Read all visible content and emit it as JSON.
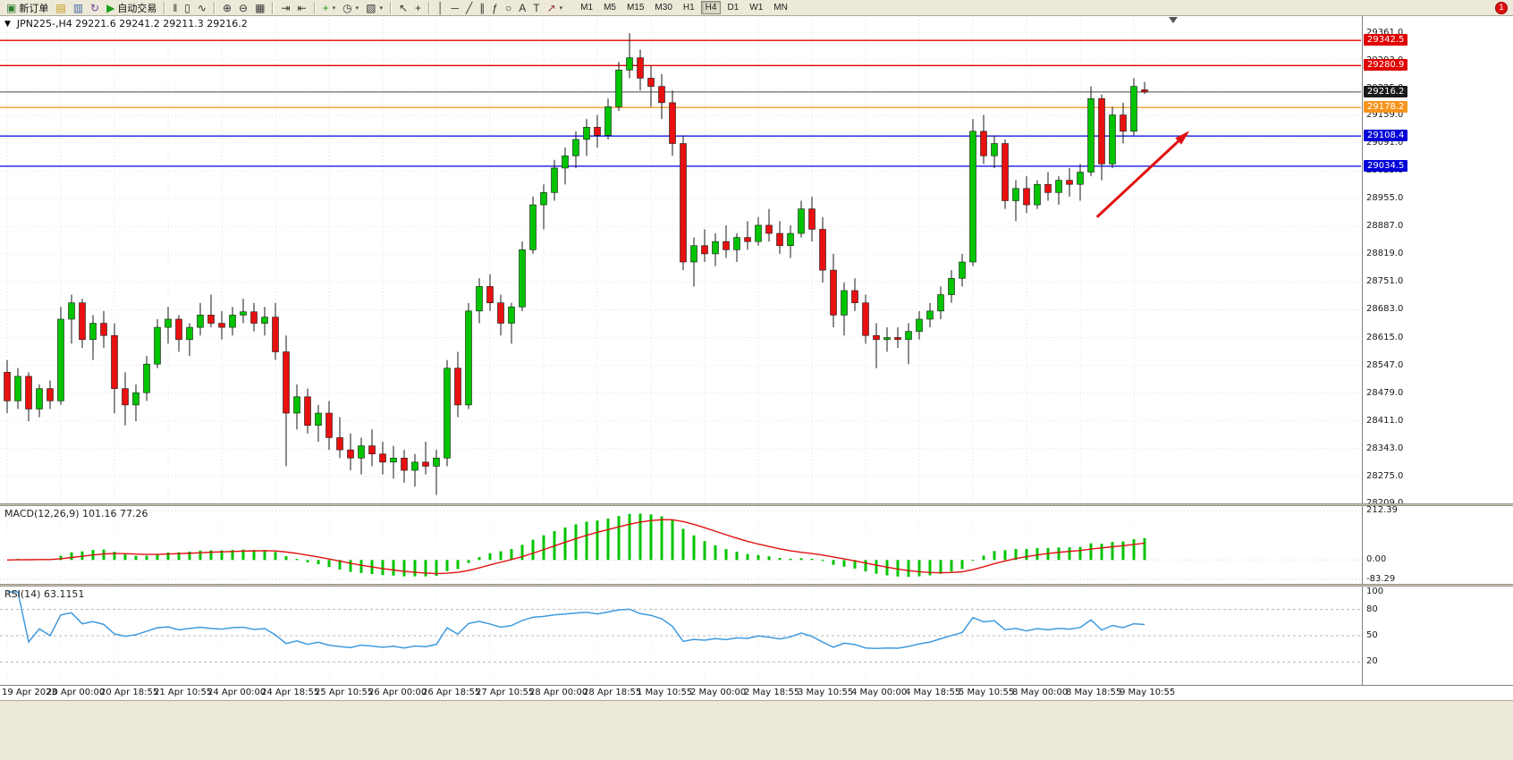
{
  "toolbar": {
    "buttons": [
      {
        "name": "new-order",
        "icon": "new-order-icon",
        "glyph": "▣",
        "label": "新订单",
        "color": "#2f7d2f"
      },
      {
        "name": "market-watch",
        "icon": "market-watch-icon",
        "glyph": "▤",
        "color": "#c89612"
      },
      {
        "name": "data-window",
        "icon": "data-window-icon",
        "glyph": "▥",
        "color": "#4668a8"
      },
      {
        "name": "refresh",
        "icon": "refresh-icon",
        "glyph": "↻",
        "color": "#7a3fa0"
      },
      {
        "name": "auto-trading",
        "icon": "auto-trading-icon",
        "glyph": "▶",
        "label": "自动交易",
        "color": "#18a018"
      },
      {
        "sep": true
      },
      {
        "name": "bar-chart",
        "icon": "bar-chart-icon",
        "glyph": "‖",
        "color": "#333333"
      },
      {
        "name": "candlestick-chart",
        "icon": "candlestick-chart-icon",
        "glyph": "▯",
        "color": "#333333"
      },
      {
        "name": "line-chart",
        "icon": "line-chart-icon",
        "glyph": "∿",
        "color": "#333333"
      },
      {
        "sep": true
      },
      {
        "name": "zoom-in",
        "icon": "zoom-in-icon",
        "glyph": "⊕",
        "color": "#333333"
      },
      {
        "name": "zoom-out",
        "icon": "zoom-out-icon",
        "glyph": "⊖",
        "color": "#333333"
      },
      {
        "name": "tile-windows",
        "icon": "tile-windows-icon",
        "glyph": "▦",
        "color": "#333333"
      },
      {
        "sep": true
      },
      {
        "name": "auto-scroll",
        "icon": "auto-scroll-icon",
        "glyph": "⇥",
        "color": "#333333"
      },
      {
        "name": "chart-shift",
        "icon": "chart-shift-icon",
        "glyph": "⇤",
        "color": "#333333"
      },
      {
        "sep": true
      },
      {
        "name": "indicators",
        "icon": "indicators-icon",
        "glyph": "+",
        "color": "#18a018",
        "caret": true
      },
      {
        "name": "periods",
        "icon": "periods-icon",
        "glyph": "◷",
        "color": "#333333",
        "caret": true
      },
      {
        "name": "templates",
        "icon": "templates-icon",
        "glyph": "▧",
        "color": "#333333",
        "caret": true
      },
      {
        "sep": true
      },
      {
        "name": "cursor",
        "icon": "cursor-icon",
        "glyph": "↖",
        "color": "#333333"
      },
      {
        "name": "crosshair",
        "icon": "crosshair-icon",
        "glyph": "+",
        "color": "#333333"
      },
      {
        "sep": true
      },
      {
        "name": "vertical-line",
        "icon": "vertical-line-icon",
        "glyph": "│",
        "color": "#333333"
      },
      {
        "name": "horizontal-line",
        "icon": "horizontal-line-icon",
        "glyph": "─",
        "color": "#333333"
      },
      {
        "name": "trendline",
        "icon": "trendline-icon",
        "glyph": "╱",
        "color": "#333333"
      },
      {
        "name": "equidistant-channel",
        "icon": "channel-icon",
        "glyph": "∥",
        "color": "#333333"
      },
      {
        "name": "fibonacci",
        "icon": "fibonacci-icon",
        "glyph": "ƒ",
        "color": "#333333"
      },
      {
        "name": "shapes",
        "icon": "shapes-icon",
        "glyph": "○",
        "color": "#333333"
      },
      {
        "name": "text",
        "icon": "text-icon",
        "glyph": "A",
        "color": "#333333"
      },
      {
        "name": "text-label",
        "icon": "text-label-icon",
        "glyph": "T",
        "color": "#333333"
      },
      {
        "name": "arrows",
        "icon": "arrows-icon",
        "glyph": "↗",
        "color": "#a03030",
        "caret": true
      }
    ],
    "timeframes": [
      "M1",
      "M5",
      "M15",
      "M30",
      "H1",
      "H4",
      "D1",
      "W1",
      "MN"
    ],
    "active_timeframe": "H4",
    "notification_count": "1"
  },
  "chart": {
    "symbol_caret": "▼",
    "title": "JPN225-,H4 29221.6 29241.2 29211.3 29216.2"
  },
  "chart_data": {
    "type": "candlestick",
    "symbol": "JPN225-",
    "timeframe": "H4",
    "ohlc_display": {
      "open": "29221.6",
      "high": "29241.2",
      "low": "29211.3",
      "close": "29216.2"
    },
    "up_color": "#00C400",
    "down_color": "#E81010",
    "wick_color": "#1a1a1a",
    "y_range": [
      28209,
      29402
    ],
    "y_ticks": [
      29361.0,
      29293.0,
      29225.0,
      29159.0,
      29091.0,
      29023.0,
      28955.0,
      28887.0,
      28819.0,
      28751.0,
      28683.0,
      28615.0,
      28547.0,
      28479.0,
      28411.0,
      28343.0,
      28275.0,
      28209.0
    ],
    "x_labels": [
      "19 Apr 2023",
      "20 Apr 00:00",
      "20 Apr 18:55",
      "21 Apr 10:55",
      "24 Apr 00:00",
      "24 Apr 18:55",
      "25 Apr 10:55",
      "26 Apr 00:00",
      "26 Apr 18:55",
      "27 Apr 10:55",
      "28 Apr 00:00",
      "28 Apr 18:55",
      "1 May 10:55",
      "2 May 00:00",
      "2 May 18:55",
      "3 May 10:55",
      "4 May 00:00",
      "4 May 18:55",
      "5 May 10:55",
      "8 May 00:00",
      "8 May 18:55",
      "9 May 10:55"
    ],
    "candles": [
      [
        28530,
        28560,
        28430,
        28460
      ],
      [
        28460,
        28540,
        28440,
        28520
      ],
      [
        28520,
        28530,
        28410,
        28440
      ],
      [
        28440,
        28500,
        28420,
        28490
      ],
      [
        28490,
        28510,
        28440,
        28460
      ],
      [
        28460,
        28690,
        28450,
        28660
      ],
      [
        28660,
        28720,
        28600,
        28700
      ],
      [
        28700,
        28710,
        28590,
        28610
      ],
      [
        28610,
        28670,
        28560,
        28650
      ],
      [
        28650,
        28680,
        28590,
        28620
      ],
      [
        28620,
        28650,
        28430,
        28490
      ],
      [
        28490,
        28530,
        28400,
        28450
      ],
      [
        28450,
        28500,
        28410,
        28480
      ],
      [
        28480,
        28570,
        28460,
        28550
      ],
      [
        28550,
        28660,
        28540,
        28640
      ],
      [
        28640,
        28690,
        28600,
        28660
      ],
      [
        28660,
        28670,
        28580,
        28610
      ],
      [
        28610,
        28650,
        28570,
        28640
      ],
      [
        28640,
        28700,
        28620,
        28670
      ],
      [
        28670,
        28720,
        28640,
        28650
      ],
      [
        28650,
        28680,
        28610,
        28640
      ],
      [
        28640,
        28690,
        28620,
        28670
      ],
      [
        28670,
        28710,
        28650,
        28678
      ],
      [
        28678,
        28700,
        28630,
        28650
      ],
      [
        28650,
        28690,
        28620,
        28665
      ],
      [
        28665,
        28700,
        28560,
        28580
      ],
      [
        28580,
        28620,
        28300,
        28430
      ],
      [
        28430,
        28500,
        28390,
        28470
      ],
      [
        28470,
        28490,
        28380,
        28400
      ],
      [
        28400,
        28450,
        28360,
        28430
      ],
      [
        28430,
        28460,
        28340,
        28370
      ],
      [
        28370,
        28420,
        28320,
        28340
      ],
      [
        28340,
        28380,
        28290,
        28320
      ],
      [
        28320,
        28370,
        28280,
        28350
      ],
      [
        28350,
        28390,
        28300,
        28330
      ],
      [
        28330,
        28360,
        28280,
        28310
      ],
      [
        28310,
        28350,
        28270,
        28320
      ],
      [
        28320,
        28340,
        28260,
        28290
      ],
      [
        28290,
        28330,
        28250,
        28310
      ],
      [
        28310,
        28360,
        28280,
        28300
      ],
      [
        28300,
        28340,
        28230,
        28320
      ],
      [
        28320,
        28560,
        28300,
        28540
      ],
      [
        28540,
        28580,
        28420,
        28450
      ],
      [
        28450,
        28700,
        28440,
        28680
      ],
      [
        28680,
        28760,
        28650,
        28740
      ],
      [
        28740,
        28770,
        28680,
        28700
      ],
      [
        28700,
        28720,
        28620,
        28650
      ],
      [
        28650,
        28700,
        28600,
        28690
      ],
      [
        28690,
        28850,
        28680,
        28830
      ],
      [
        28830,
        28960,
        28820,
        28940
      ],
      [
        28940,
        28990,
        28880,
        28970
      ],
      [
        28970,
        29050,
        28950,
        29030
      ],
      [
        29030,
        29080,
        28990,
        29060
      ],
      [
        29060,
        29120,
        29030,
        29100
      ],
      [
        29100,
        29150,
        29060,
        29130
      ],
      [
        29130,
        29160,
        29080,
        29110
      ],
      [
        29110,
        29200,
        29100,
        29180
      ],
      [
        29180,
        29290,
        29170,
        29270
      ],
      [
        29270,
        29360,
        29250,
        29300
      ],
      [
        29300,
        29320,
        29220,
        29250
      ],
      [
        29250,
        29280,
        29180,
        29230
      ],
      [
        29230,
        29260,
        29150,
        29190
      ],
      [
        29190,
        29220,
        29060,
        29090
      ],
      [
        29090,
        29110,
        28780,
        28800
      ],
      [
        28800,
        28860,
        28740,
        28840
      ],
      [
        28840,
        28880,
        28800,
        28820
      ],
      [
        28820,
        28870,
        28790,
        28850
      ],
      [
        28850,
        28890,
        28810,
        28830
      ],
      [
        28830,
        28870,
        28800,
        28860
      ],
      [
        28860,
        28900,
        28830,
        28850
      ],
      [
        28850,
        28910,
        28840,
        28890
      ],
      [
        28890,
        28930,
        28850,
        28870
      ],
      [
        28870,
        28900,
        28820,
        28840
      ],
      [
        28840,
        28890,
        28810,
        28870
      ],
      [
        28870,
        28950,
        28860,
        28930
      ],
      [
        28930,
        28960,
        28850,
        28880
      ],
      [
        28880,
        28910,
        28750,
        28780
      ],
      [
        28780,
        28820,
        28640,
        28670
      ],
      [
        28670,
        28750,
        28620,
        28730
      ],
      [
        28730,
        28760,
        28680,
        28700
      ],
      [
        28700,
        28720,
        28600,
        28620
      ],
      [
        28620,
        28650,
        28540,
        28610
      ],
      [
        28610,
        28640,
        28580,
        28615
      ],
      [
        28615,
        28640,
        28590,
        28610
      ],
      [
        28610,
        28650,
        28550,
        28630
      ],
      [
        28630,
        28680,
        28610,
        28660
      ],
      [
        28660,
        28700,
        28640,
        28680
      ],
      [
        28680,
        28740,
        28660,
        28720
      ],
      [
        28720,
        28780,
        28700,
        28760
      ],
      [
        28760,
        28820,
        28740,
        28800
      ],
      [
        28800,
        29150,
        28790,
        29120
      ],
      [
        29120,
        29160,
        29040,
        29060
      ],
      [
        29060,
        29110,
        29030,
        29090
      ],
      [
        29090,
        29100,
        28930,
        28950
      ],
      [
        28950,
        29000,
        28900,
        28980
      ],
      [
        28980,
        29010,
        28920,
        28940
      ],
      [
        28940,
        29000,
        28930,
        28990
      ],
      [
        28990,
        29020,
        28950,
        28970
      ],
      [
        28970,
        29010,
        28940,
        29000
      ],
      [
        29000,
        29030,
        28960,
        28990
      ],
      [
        28990,
        29040,
        28950,
        29020
      ],
      [
        29020,
        29230,
        29010,
        29200
      ],
      [
        29200,
        29210,
        29000,
        29040
      ],
      [
        29040,
        29180,
        29030,
        29160
      ],
      [
        29160,
        29190,
        29090,
        29120
      ],
      [
        29120,
        29250,
        29110,
        29230
      ],
      [
        29221.6,
        29241.2,
        29211.3,
        29216.2
      ]
    ],
    "price_lines": [
      {
        "price": 29342.5,
        "label": "29342.5",
        "color": "#E00000"
      },
      {
        "price": 29280.9,
        "label": "29280.9",
        "color": "#E00000"
      },
      {
        "price": 29178.2,
        "label": "29178.2",
        "color": "#F7941D"
      },
      {
        "price": 29108.4,
        "label": "29108.4",
        "color": "#0000D8"
      },
      {
        "price": 29034.5,
        "label": "29034.5",
        "color": "#0000D8"
      }
    ],
    "current_price": {
      "value": 29216.2,
      "label": "29216.2",
      "color": "#1a1a1a"
    },
    "annotations": {
      "trend_arrow": {
        "x1_frac": 0.806,
        "price1": 28910,
        "x2_frac": 0.872,
        "price2": 29115,
        "color": "#E01010"
      },
      "shift_marker_frac": 0.862
    },
    "indicators": [
      {
        "name": "MACD",
        "label": "MACD(12,26,9) 101.16 77.26",
        "fast": 12,
        "slow": 26,
        "signal": 9,
        "ticks": [
          "212.39",
          "0.00",
          "-83.29"
        ],
        "range": [
          -83.29,
          212.39
        ],
        "histogram_color": "#00C400",
        "signal_color": "#E01010"
      },
      {
        "name": "RSI",
        "label": "RSI(14) 63.1151",
        "period": 14,
        "ticks": [
          "100",
          "80",
          "50",
          "20"
        ],
        "levels": [
          80,
          50,
          20
        ],
        "range": [
          0,
          100
        ],
        "line_color": "#3E9ADE"
      }
    ]
  }
}
